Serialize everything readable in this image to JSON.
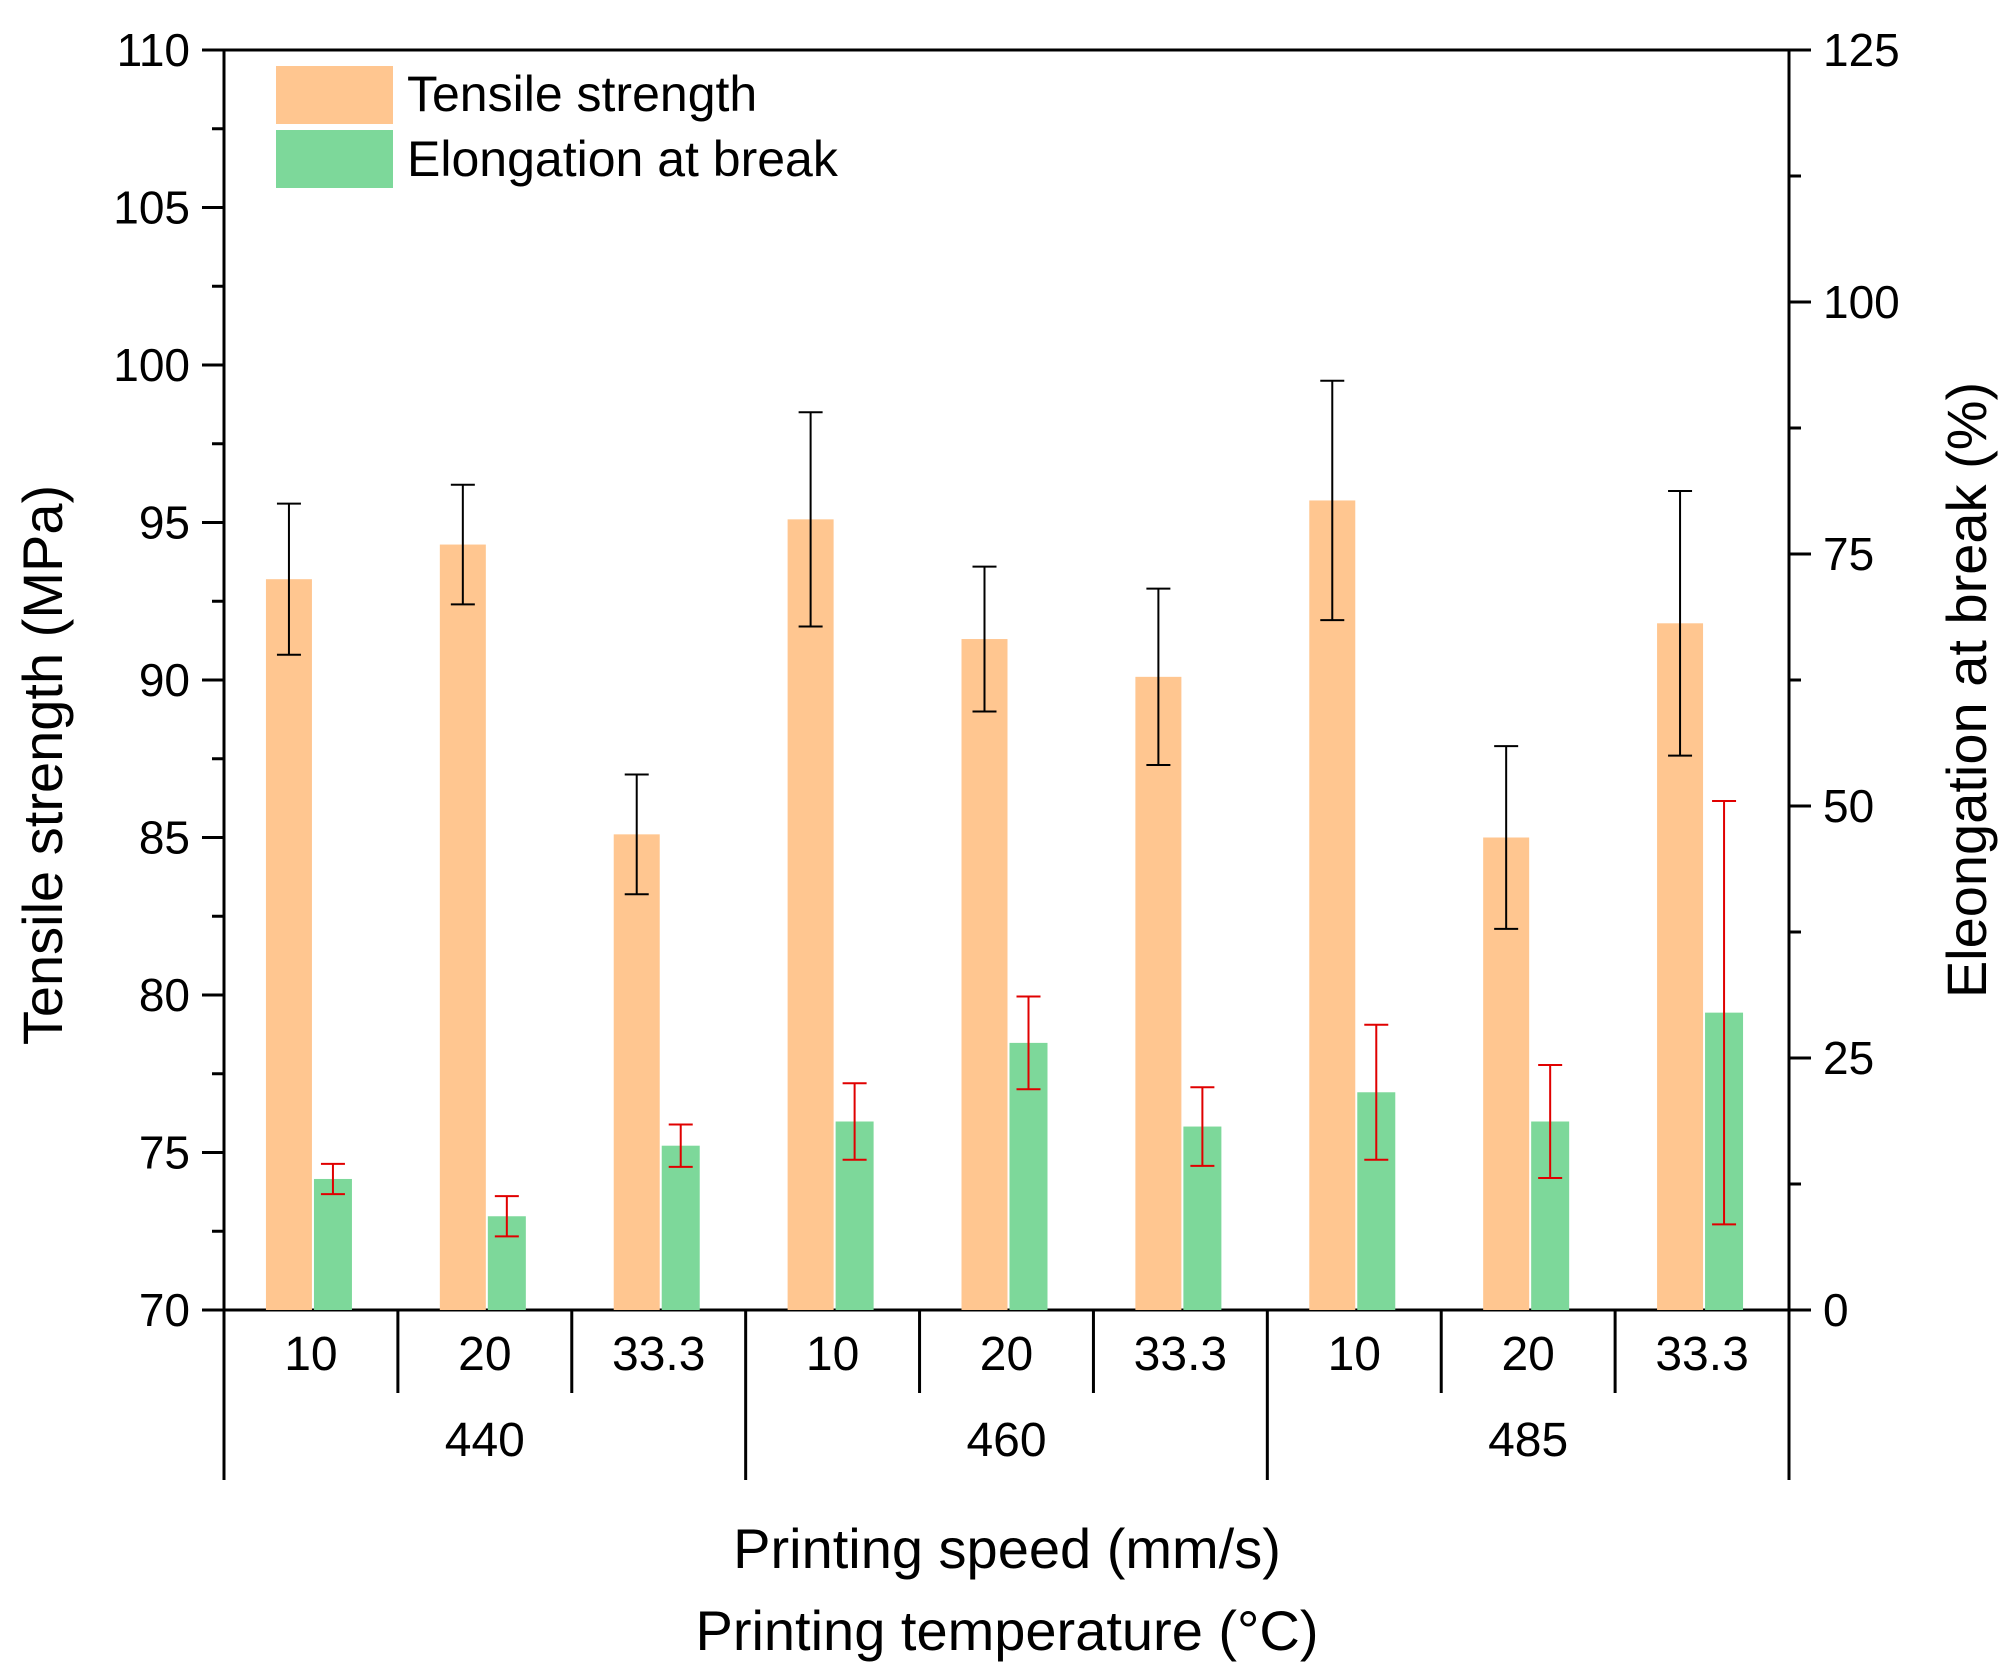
{
  "chart_data": {
    "type": "bar",
    "x_label_inner": "Printing speed (mm/s)",
    "x_label_outer": "Printing temperature (°C)",
    "categories": [
      "10",
      "20",
      "33.3",
      "10",
      "20",
      "33.3",
      "10",
      "20",
      "33.3"
    ],
    "groups": [
      {
        "label": "440",
        "span": [
          0,
          2
        ]
      },
      {
        "label": "460",
        "span": [
          3,
          5
        ]
      },
      {
        "label": "485",
        "span": [
          6,
          8
        ]
      }
    ],
    "y_left": {
      "label": "Tensile strength (MPa)",
      "ylim": [
        70,
        110
      ],
      "ticks": [
        "70",
        "75",
        "80",
        "85",
        "90",
        "95",
        "100",
        "105",
        "110"
      ],
      "tick_values": [
        70,
        75,
        80,
        85,
        90,
        95,
        100,
        105,
        110
      ]
    },
    "y_right": {
      "label": "Eleongation at break (%)",
      "ylim": [
        0,
        125
      ],
      "ticks": [
        "0",
        "25",
        "50",
        "75",
        "100",
        "125"
      ],
      "tick_values": [
        0,
        25,
        50,
        75,
        100,
        125
      ]
    },
    "series": [
      {
        "name": "Tensile strength",
        "axis": "left",
        "color": "#ffc690",
        "error_color": "#000000",
        "values": [
          93.2,
          94.3,
          85.1,
          95.1,
          91.3,
          90.1,
          95.7,
          85.0,
          91.8
        ],
        "errors": [
          2.4,
          1.9,
          1.9,
          3.4,
          2.3,
          2.8,
          3.8,
          2.9,
          4.2
        ]
      },
      {
        "name": "Elongation at break",
        "axis": "right",
        "color": "#7dd89a",
        "error_color": "#e00000",
        "values": [
          13.0,
          9.3,
          16.3,
          18.7,
          26.5,
          18.2,
          21.6,
          18.7,
          29.5
        ],
        "errors": [
          1.5,
          2.0,
          2.1,
          3.8,
          4.6,
          3.9,
          6.7,
          5.6,
          21.0
        ]
      }
    ],
    "legend": {
      "position": "top-left",
      "entries": [
        "Tensile strength",
        "Elongation at break"
      ]
    }
  }
}
